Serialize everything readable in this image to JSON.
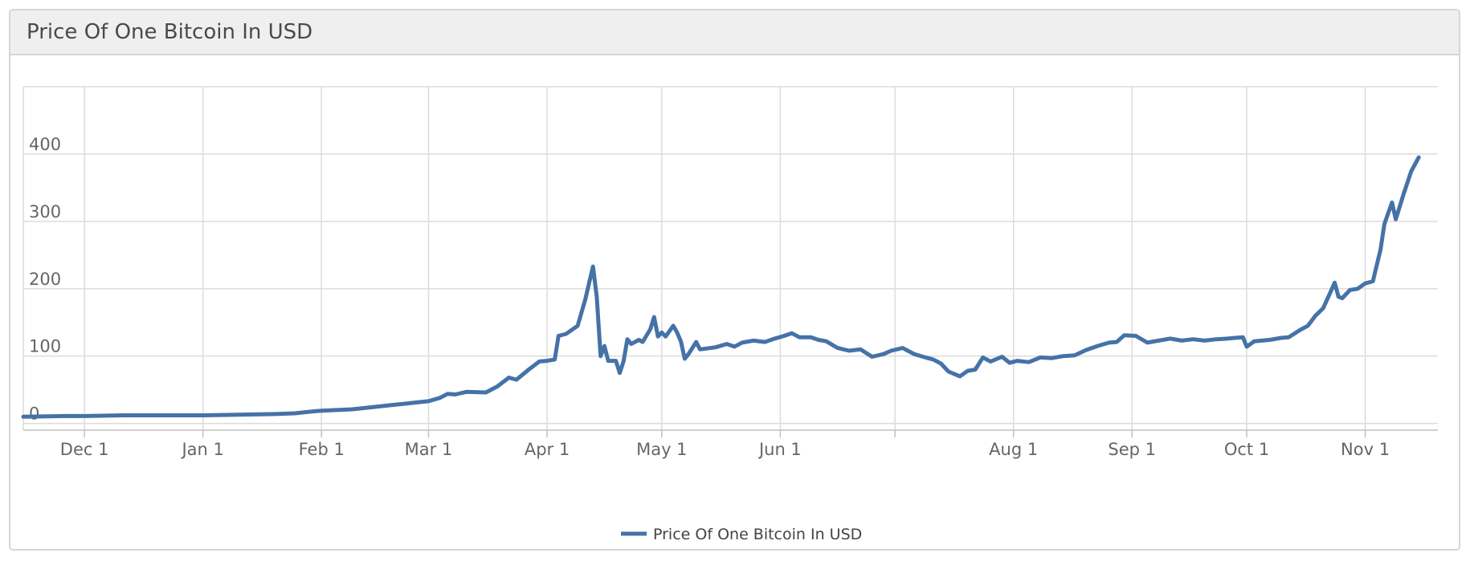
{
  "title": "Price Of One Bitcoin In USD",
  "colors": {
    "series": "#4572A7",
    "grid": "#dcdcdc",
    "axis_text": "#666666"
  },
  "chart_data": {
    "type": "line",
    "title": "Price Of One Bitcoin In USD",
    "xlabel": "",
    "ylabel": "",
    "x_tick_labels": [
      {
        "label": "Dec 1",
        "day": 0
      },
      {
        "label": "Jan 1",
        "day": 31
      },
      {
        "label": "Feb 1",
        "day": 62
      },
      {
        "label": "Mar 1",
        "day": 90
      },
      {
        "label": "Apr 1",
        "day": 121
      },
      {
        "label": "May 1",
        "day": 151
      },
      {
        "label": "Jun 1",
        "day": 182
      },
      {
        "label": "",
        "day": 212
      },
      {
        "label": "Aug 1",
        "day": 243
      },
      {
        "label": "Sep 1",
        "day": 274
      },
      {
        "label": "Oct 1",
        "day": 304
      },
      {
        "label": "Nov 1",
        "day": 335
      }
    ],
    "x_range_days": [
      -16,
      354
    ],
    "y_ticks": [
      0,
      100,
      200,
      300,
      400
    ],
    "ylim": [
      -10,
      500
    ],
    "grid": true,
    "legend_position": "bottom-center",
    "series": [
      {
        "name": "Price Of One Bitcoin In USD",
        "points": [
          [
            -16,
            10
          ],
          [
            -5,
            11
          ],
          [
            0,
            11
          ],
          [
            10,
            12
          ],
          [
            20,
            12
          ],
          [
            31,
            12
          ],
          [
            40,
            13
          ],
          [
            50,
            14
          ],
          [
            55,
            15
          ],
          [
            60,
            18
          ],
          [
            62,
            19
          ],
          [
            70,
            21
          ],
          [
            75,
            24
          ],
          [
            80,
            27
          ],
          [
            85,
            30
          ],
          [
            90,
            33
          ],
          [
            93,
            38
          ],
          [
            95,
            44
          ],
          [
            97,
            43
          ],
          [
            100,
            47
          ],
          [
            105,
            46
          ],
          [
            108,
            55
          ],
          [
            111,
            68
          ],
          [
            113,
            65
          ],
          [
            116,
            79
          ],
          [
            119,
            92
          ],
          [
            121,
            93
          ],
          [
            123,
            95
          ],
          [
            124,
            130
          ],
          [
            126,
            133
          ],
          [
            129,
            145
          ],
          [
            131,
            184
          ],
          [
            133,
            233
          ],
          [
            134,
            188
          ],
          [
            135,
            100
          ],
          [
            136,
            115
          ],
          [
            137,
            93
          ],
          [
            139,
            93
          ],
          [
            140,
            75
          ],
          [
            141,
            92
          ],
          [
            142,
            125
          ],
          [
            143,
            118
          ],
          [
            145,
            124
          ],
          [
            146,
            121
          ],
          [
            148,
            140
          ],
          [
            149,
            158
          ],
          [
            150,
            129
          ],
          [
            151,
            135
          ],
          [
            152,
            129
          ],
          [
            154,
            145
          ],
          [
            155,
            135
          ],
          [
            156,
            122
          ],
          [
            157,
            96
          ],
          [
            158,
            103
          ],
          [
            160,
            121
          ],
          [
            161,
            110
          ],
          [
            165,
            113
          ],
          [
            168,
            118
          ],
          [
            170,
            114
          ],
          [
            172,
            120
          ],
          [
            175,
            123
          ],
          [
            178,
            121
          ],
          [
            180,
            125
          ],
          [
            183,
            130
          ],
          [
            185,
            134
          ],
          [
            187,
            128
          ],
          [
            190,
            128
          ],
          [
            192,
            124
          ],
          [
            194,
            122
          ],
          [
            197,
            112
          ],
          [
            200,
            108
          ],
          [
            203,
            110
          ],
          [
            206,
            99
          ],
          [
            209,
            103
          ],
          [
            211,
            108
          ],
          [
            214,
            112
          ],
          [
            217,
            103
          ],
          [
            220,
            98
          ],
          [
            222,
            95
          ],
          [
            224,
            89
          ],
          [
            226,
            77
          ],
          [
            229,
            70
          ],
          [
            231,
            78
          ],
          [
            233,
            80
          ],
          [
            235,
            98
          ],
          [
            237,
            92
          ],
          [
            240,
            99
          ],
          [
            242,
            90
          ],
          [
            244,
            93
          ],
          [
            247,
            91
          ],
          [
            250,
            98
          ],
          [
            253,
            97
          ],
          [
            256,
            100
          ],
          [
            259,
            101
          ],
          [
            262,
            109
          ],
          [
            265,
            115
          ],
          [
            268,
            120
          ],
          [
            270,
            121
          ],
          [
            272,
            131
          ],
          [
            275,
            130
          ],
          [
            278,
            120
          ],
          [
            281,
            123
          ],
          [
            284,
            126
          ],
          [
            287,
            123
          ],
          [
            290,
            125
          ],
          [
            293,
            123
          ],
          [
            296,
            125
          ],
          [
            299,
            126
          ],
          [
            301,
            127
          ],
          [
            303,
            128
          ],
          [
            304,
            114
          ],
          [
            306,
            122
          ],
          [
            310,
            124
          ],
          [
            313,
            127
          ],
          [
            315,
            128
          ],
          [
            318,
            139
          ],
          [
            320,
            145
          ],
          [
            322,
            160
          ],
          [
            324,
            171
          ],
          [
            326,
            196
          ],
          [
            327,
            209
          ],
          [
            328,
            188
          ],
          [
            329,
            186
          ],
          [
            331,
            198
          ],
          [
            333,
            200
          ],
          [
            335,
            208
          ],
          [
            337,
            211
          ],
          [
            339,
            258
          ],
          [
            340,
            296
          ],
          [
            341,
            312
          ],
          [
            342,
            328
          ],
          [
            343,
            303
          ],
          [
            345,
            340
          ],
          [
            347,
            374
          ],
          [
            349,
            395
          ]
        ]
      }
    ]
  }
}
